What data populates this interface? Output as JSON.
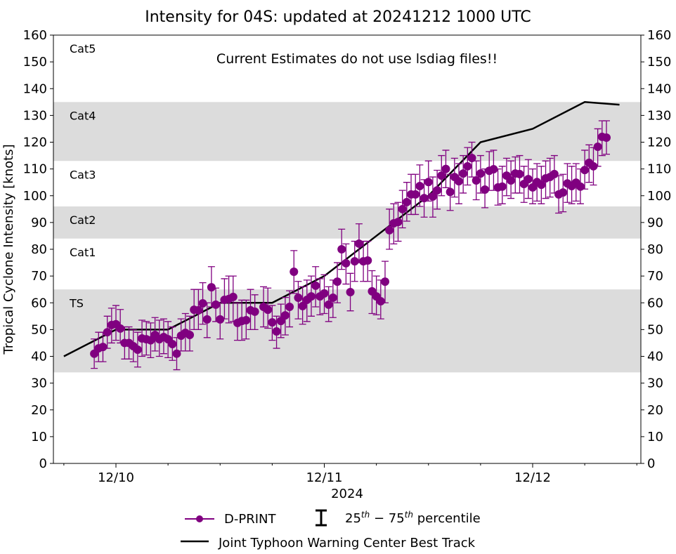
{
  "chart_data": {
    "type": "line",
    "title": "Intensity for 04S: updated at 20241212 1000 UTC",
    "annotation": "Current Estimates do not use lsdiag files!!",
    "xlabel": "2024",
    "ylabel": "Tropical Cyclone Intensity [knots]",
    "ylim": [
      0,
      160
    ],
    "yticks": [
      0,
      10,
      20,
      30,
      40,
      50,
      60,
      70,
      80,
      90,
      100,
      110,
      120,
      130,
      140,
      150,
      160
    ],
    "xlim": [
      "2024-12-09 17:00",
      "2024-12-12 20:30"
    ],
    "xticks": [
      {
        "t": "2024-12-10 00:00",
        "label": "12/10"
      },
      {
        "t": "2024-12-11 00:00",
        "label": "12/11"
      },
      {
        "t": "2024-12-12 00:00",
        "label": "12/12"
      }
    ],
    "minor_tick_hours": 6,
    "grid": false,
    "category_bands": [
      {
        "label": "TS",
        "low": 34,
        "high": 65,
        "shaded": true,
        "color": "#dcdcdc"
      },
      {
        "label": "Cat1",
        "low": 65,
        "high": 84,
        "shaded": false
      },
      {
        "label": "Cat2",
        "low": 84,
        "high": 96,
        "shaded": true,
        "color": "#dcdcdc"
      },
      {
        "label": "Cat3",
        "low": 96,
        "high": 113,
        "shaded": false
      },
      {
        "label": "Cat4",
        "low": 113,
        "high": 135,
        "shaded": true,
        "color": "#dcdcdc"
      },
      {
        "label": "Cat5",
        "low": 135,
        "high": 160,
        "shaded": false
      }
    ],
    "legend": {
      "placement": "bottom",
      "dprint": "D-PRINT",
      "percentile": "25th – 75th percentile",
      "percentile_base1": "25",
      "percentile_sup1": "th",
      "percentile_mid": " − 75",
      "percentile_sup2": "th",
      "percentile_tail": " percentile",
      "best_track": "Joint Typhoon Warning Center Best Track"
    },
    "series": [
      {
        "name": "Joint Typhoon Warning Center Best Track",
        "color": "#000000",
        "points": [
          [
            "2024-12-09 18:00",
            40
          ],
          [
            "2024-12-10 00:00",
            50
          ],
          [
            "2024-12-10 06:00",
            50
          ],
          [
            "2024-12-10 12:00",
            60
          ],
          [
            "2024-12-10 18:00",
            60
          ],
          [
            "2024-12-11 00:00",
            70
          ],
          [
            "2024-12-11 06:00",
            85
          ],
          [
            "2024-12-11 12:00",
            100
          ],
          [
            "2024-12-11 18:00",
            120
          ],
          [
            "2024-12-12 00:00",
            125
          ],
          [
            "2024-12-12 06:00",
            135
          ],
          [
            "2024-12-12 10:00",
            134
          ]
        ]
      },
      {
        "name": "D-PRINT",
        "color": "#800080",
        "point_format": [
          "time",
          "value",
          "p25",
          "p75"
        ],
        "points": [
          [
            "2024-12-09 21:30",
            41,
            35.5,
            46.5
          ],
          [
            "2024-12-09 22:00",
            43,
            38,
            49
          ],
          [
            "2024-12-09 22:30",
            43.5,
            38,
            49
          ],
          [
            "2024-12-09 23:00",
            49,
            43,
            55
          ],
          [
            "2024-12-09 23:30",
            51.7,
            45,
            58
          ],
          [
            "2024-12-10 00:00",
            52,
            46,
            59
          ],
          [
            "2024-12-10 00:30",
            50.4,
            45,
            57.5
          ],
          [
            "2024-12-10 01:00",
            45,
            39,
            51
          ],
          [
            "2024-12-10 01:30",
            45,
            39,
            51
          ],
          [
            "2024-12-10 02:00",
            43.8,
            38,
            50
          ],
          [
            "2024-12-10 02:30",
            42.5,
            36,
            49
          ],
          [
            "2024-12-10 03:00",
            46.7,
            40,
            53.5
          ],
          [
            "2024-12-10 03:30",
            46.4,
            40.5,
            53
          ],
          [
            "2024-12-10 04:00",
            46,
            39.5,
            52.5
          ],
          [
            "2024-12-10 04:30",
            48,
            42,
            54.5
          ],
          [
            "2024-12-10 05:00",
            46.4,
            40,
            53.5
          ],
          [
            "2024-12-10 05:30",
            47.2,
            41,
            54
          ],
          [
            "2024-12-10 06:00",
            46.4,
            39.5,
            53
          ],
          [
            "2024-12-10 06:30",
            44.6,
            38.5,
            51
          ],
          [
            "2024-12-10 07:00",
            41,
            35,
            47
          ],
          [
            "2024-12-10 07:30",
            47.7,
            42,
            54
          ],
          [
            "2024-12-10 08:00",
            48.8,
            42,
            56
          ],
          [
            "2024-12-10 08:30",
            48,
            42,
            55
          ],
          [
            "2024-12-10 09:00",
            57.4,
            50,
            65
          ],
          [
            "2024-12-10 09:30",
            57.2,
            50,
            65
          ],
          [
            "2024-12-10 10:00",
            59.8,
            52,
            67.5
          ],
          [
            "2024-12-10 10:30",
            53.8,
            47,
            60
          ],
          [
            "2024-12-10 11:00",
            65.8,
            58.5,
            73.5
          ],
          [
            "2024-12-10 11:30",
            59.3,
            53,
            65.5
          ],
          [
            "2024-12-10 12:00",
            53.8,
            46.5,
            60
          ],
          [
            "2024-12-10 12:30",
            61.1,
            54,
            69
          ],
          [
            "2024-12-10 13:00",
            61.4,
            52.5,
            70
          ],
          [
            "2024-12-10 13:30",
            62.2,
            53,
            70
          ],
          [
            "2024-12-10 14:00",
            52.5,
            46,
            60
          ],
          [
            "2024-12-10 14:30",
            53.2,
            46,
            61
          ],
          [
            "2024-12-10 15:00",
            53.5,
            46.5,
            61
          ],
          [
            "2024-12-10 15:30",
            57.2,
            50,
            65
          ],
          [
            "2024-12-10 16:00",
            56.7,
            50,
            63
          ],
          [
            "2024-12-10 17:00",
            58.5,
            51,
            66
          ],
          [
            "2024-12-10 17:30",
            57.4,
            50.5,
            65.5
          ],
          [
            "2024-12-10 18:00",
            52.7,
            46,
            59
          ],
          [
            "2024-12-10 18:30",
            49.3,
            43,
            55
          ],
          [
            "2024-12-10 19:00",
            53.2,
            47,
            59.5
          ],
          [
            "2024-12-10 19:30",
            55.3,
            48,
            62
          ],
          [
            "2024-12-10 20:00",
            58.5,
            51,
            64.5
          ],
          [
            "2024-12-10 20:30",
            71.6,
            63.5,
            79.5
          ],
          [
            "2024-12-10 21:00",
            61.9,
            54,
            68
          ],
          [
            "2024-12-10 21:30",
            58.8,
            52,
            66
          ],
          [
            "2024-12-10 22:00",
            61.1,
            53,
            68.5
          ],
          [
            "2024-12-10 22:30",
            62.4,
            55,
            70
          ],
          [
            "2024-12-10 23:00",
            66.4,
            58.5,
            73.5
          ],
          [
            "2024-12-10 23:30",
            62.4,
            55.5,
            69
          ],
          [
            "2024-12-11 00:00",
            63.5,
            56,
            70.5
          ],
          [
            "2024-12-11 00:30",
            59.3,
            53,
            66
          ],
          [
            "2024-12-11 01:00",
            61.9,
            54.5,
            68.5
          ],
          [
            "2024-12-11 01:30",
            67.9,
            60,
            75
          ],
          [
            "2024-12-11 02:00",
            80,
            72.5,
            87.5
          ],
          [
            "2024-12-11 02:30",
            74.8,
            67,
            82
          ],
          [
            "2024-12-11 03:00",
            64,
            57,
            71
          ],
          [
            "2024-12-11 03:30",
            75.5,
            68,
            83
          ],
          [
            "2024-12-11 04:00",
            82.1,
            75,
            89.5
          ],
          [
            "2024-12-11 04:30",
            75.5,
            68,
            83
          ],
          [
            "2024-12-11 05:00",
            75.8,
            68,
            83
          ],
          [
            "2024-12-11 05:30",
            64.3,
            56,
            72
          ],
          [
            "2024-12-11 06:00",
            62.4,
            55.5,
            70
          ],
          [
            "2024-12-11 06:30",
            60.6,
            54,
            68.5
          ],
          [
            "2024-12-11 07:00",
            67.9,
            60,
            75.5
          ],
          [
            "2024-12-11 07:30",
            87.1,
            80,
            95
          ],
          [
            "2024-12-11 08:00",
            89.7,
            82,
            97
          ],
          [
            "2024-12-11 08:30",
            90.2,
            83,
            97.5
          ],
          [
            "2024-12-11 09:00",
            95,
            88,
            102
          ],
          [
            "2024-12-11 09:30",
            97.6,
            90.5,
            105
          ],
          [
            "2024-12-11 10:00",
            100.5,
            93,
            108
          ],
          [
            "2024-12-11 10:30",
            100.5,
            93,
            108
          ],
          [
            "2024-12-11 11:00",
            103.6,
            96,
            111.5
          ],
          [
            "2024-12-11 11:30",
            99.1,
            92,
            106
          ],
          [
            "2024-12-11 12:00",
            105.1,
            98,
            113
          ],
          [
            "2024-12-11 12:30",
            99.7,
            92,
            107
          ],
          [
            "2024-12-11 13:00",
            102,
            95,
            109.5
          ],
          [
            "2024-12-11 13:30",
            107.5,
            100,
            115
          ],
          [
            "2024-12-11 14:00",
            110,
            103,
            117
          ],
          [
            "2024-12-11 14:30",
            101.4,
            94.5,
            108
          ],
          [
            "2024-12-11 15:00",
            107,
            99.5,
            114
          ],
          [
            "2024-12-11 15:30",
            105.4,
            97,
            112
          ],
          [
            "2024-12-11 16:00",
            108.3,
            101,
            115
          ],
          [
            "2024-12-11 16:30",
            111,
            104,
            118
          ],
          [
            "2024-12-11 17:00",
            114.1,
            107,
            120
          ],
          [
            "2024-12-11 17:30",
            105.7,
            98.5,
            113
          ],
          [
            "2024-12-11 18:00",
            108.3,
            101,
            115
          ],
          [
            "2024-12-11 18:30",
            102.3,
            95.5,
            110
          ],
          [
            "2024-12-11 19:00",
            109.3,
            102,
            116.5
          ],
          [
            "2024-12-11 19:30",
            109.9,
            102,
            117
          ],
          [
            "2024-12-11 20:00",
            103.1,
            96.5,
            110
          ],
          [
            "2024-12-11 20:30",
            103.4,
            97,
            111
          ],
          [
            "2024-12-11 21:00",
            107.5,
            100,
            114
          ],
          [
            "2024-12-11 21:30",
            105.7,
            99,
            113
          ],
          [
            "2024-12-11 22:00",
            108.3,
            101,
            114.5
          ],
          [
            "2024-12-11 22:30",
            108.1,
            101,
            115
          ],
          [
            "2024-12-11 23:00",
            104.4,
            97.5,
            111
          ],
          [
            "2024-12-11 23:30",
            106.2,
            99,
            113.5
          ],
          [
            "2024-12-12 00:00",
            103.1,
            97,
            110
          ],
          [
            "2024-12-12 00:30",
            105.1,
            98,
            112
          ],
          [
            "2024-12-12 01:00",
            104.1,
            97,
            111
          ],
          [
            "2024-12-12 01:30",
            106.5,
            99,
            113
          ],
          [
            "2024-12-12 02:00",
            107,
            99.5,
            114
          ],
          [
            "2024-12-12 02:30",
            108.1,
            101,
            115
          ],
          [
            "2024-12-12 03:00",
            100.5,
            93.5,
            107.5
          ],
          [
            "2024-12-12 03:30",
            101.2,
            94,
            108
          ],
          [
            "2024-12-12 04:00",
            104.6,
            97.5,
            112
          ],
          [
            "2024-12-12 04:30",
            103.6,
            97,
            111
          ],
          [
            "2024-12-12 05:00",
            104.9,
            98,
            112
          ],
          [
            "2024-12-12 05:30",
            103.4,
            97,
            110
          ],
          [
            "2024-12-12 06:00",
            109.6,
            102.5,
            117
          ],
          [
            "2024-12-12 06:30",
            112.3,
            105,
            119
          ],
          [
            "2024-12-12 07:00",
            111,
            104,
            118
          ],
          [
            "2024-12-12 07:30",
            118.3,
            111,
            125
          ],
          [
            "2024-12-12 08:00",
            122,
            115,
            128
          ],
          [
            "2024-12-12 08:30",
            121.7,
            115.5,
            128
          ]
        ]
      }
    ]
  }
}
